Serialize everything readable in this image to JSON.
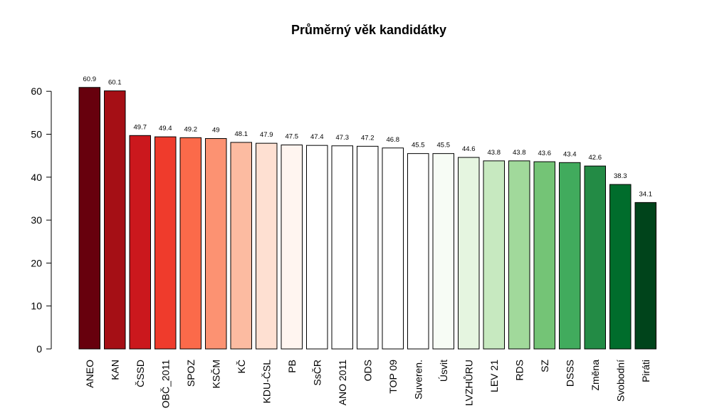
{
  "chart_data": {
    "type": "bar",
    "title": "Průměrný věk kandidátky",
    "xlabel": "",
    "ylabel": "",
    "ylim": [
      0,
      65
    ],
    "yticks": [
      0,
      10,
      20,
      30,
      40,
      50,
      60
    ],
    "grid": false,
    "legend": "none",
    "categories": [
      "ANEO",
      "KAN",
      "ČSSD",
      "OBČ_2011",
      "SPOZ",
      "KSČM",
      "KČ",
      "KDU-ČSL",
      "PB",
      "SsČR",
      "ANO 2011",
      "ODS",
      "TOP 09",
      "Suveren.",
      "Úsvit",
      "LVZHŮRU",
      "LEV 21",
      "RDS",
      "SZ",
      "DSSS",
      "Změna",
      "Svobodní",
      "Piráti"
    ],
    "values": [
      60.9,
      60.1,
      49.7,
      49.4,
      49.2,
      49,
      48.1,
      47.9,
      47.5,
      47.4,
      47.3,
      47.2,
      46.8,
      45.5,
      45.5,
      44.6,
      43.8,
      43.8,
      43.6,
      43.4,
      42.6,
      38.3,
      34.1
    ],
    "value_labels": [
      "60.9",
      "60.1",
      "49.7",
      "49.4",
      "49.2",
      "49",
      "48.1",
      "47.9",
      "47.5",
      "47.4",
      "47.3",
      "47.2",
      "46.8",
      "45.5",
      "45.5",
      "44.6",
      "43.8",
      "43.8",
      "43.6",
      "43.4",
      "42.6",
      "38.3",
      "34.1"
    ],
    "colors": [
      "#67000d",
      "#a50f15",
      "#cb181d",
      "#ef3b2c",
      "#fb6a4a",
      "#fc9272",
      "#fcbba1",
      "#fee0d2",
      "#fff5f0",
      "#ffffff",
      "#ffffff",
      "#ffffff",
      "#ffffff",
      "#ffffff",
      "#f7fcf5",
      "#e5f5e0",
      "#c7e9c0",
      "#a1d99b",
      "#74c476",
      "#41ab5d",
      "#238b45",
      "#006d2c",
      "#00441b"
    ]
  }
}
